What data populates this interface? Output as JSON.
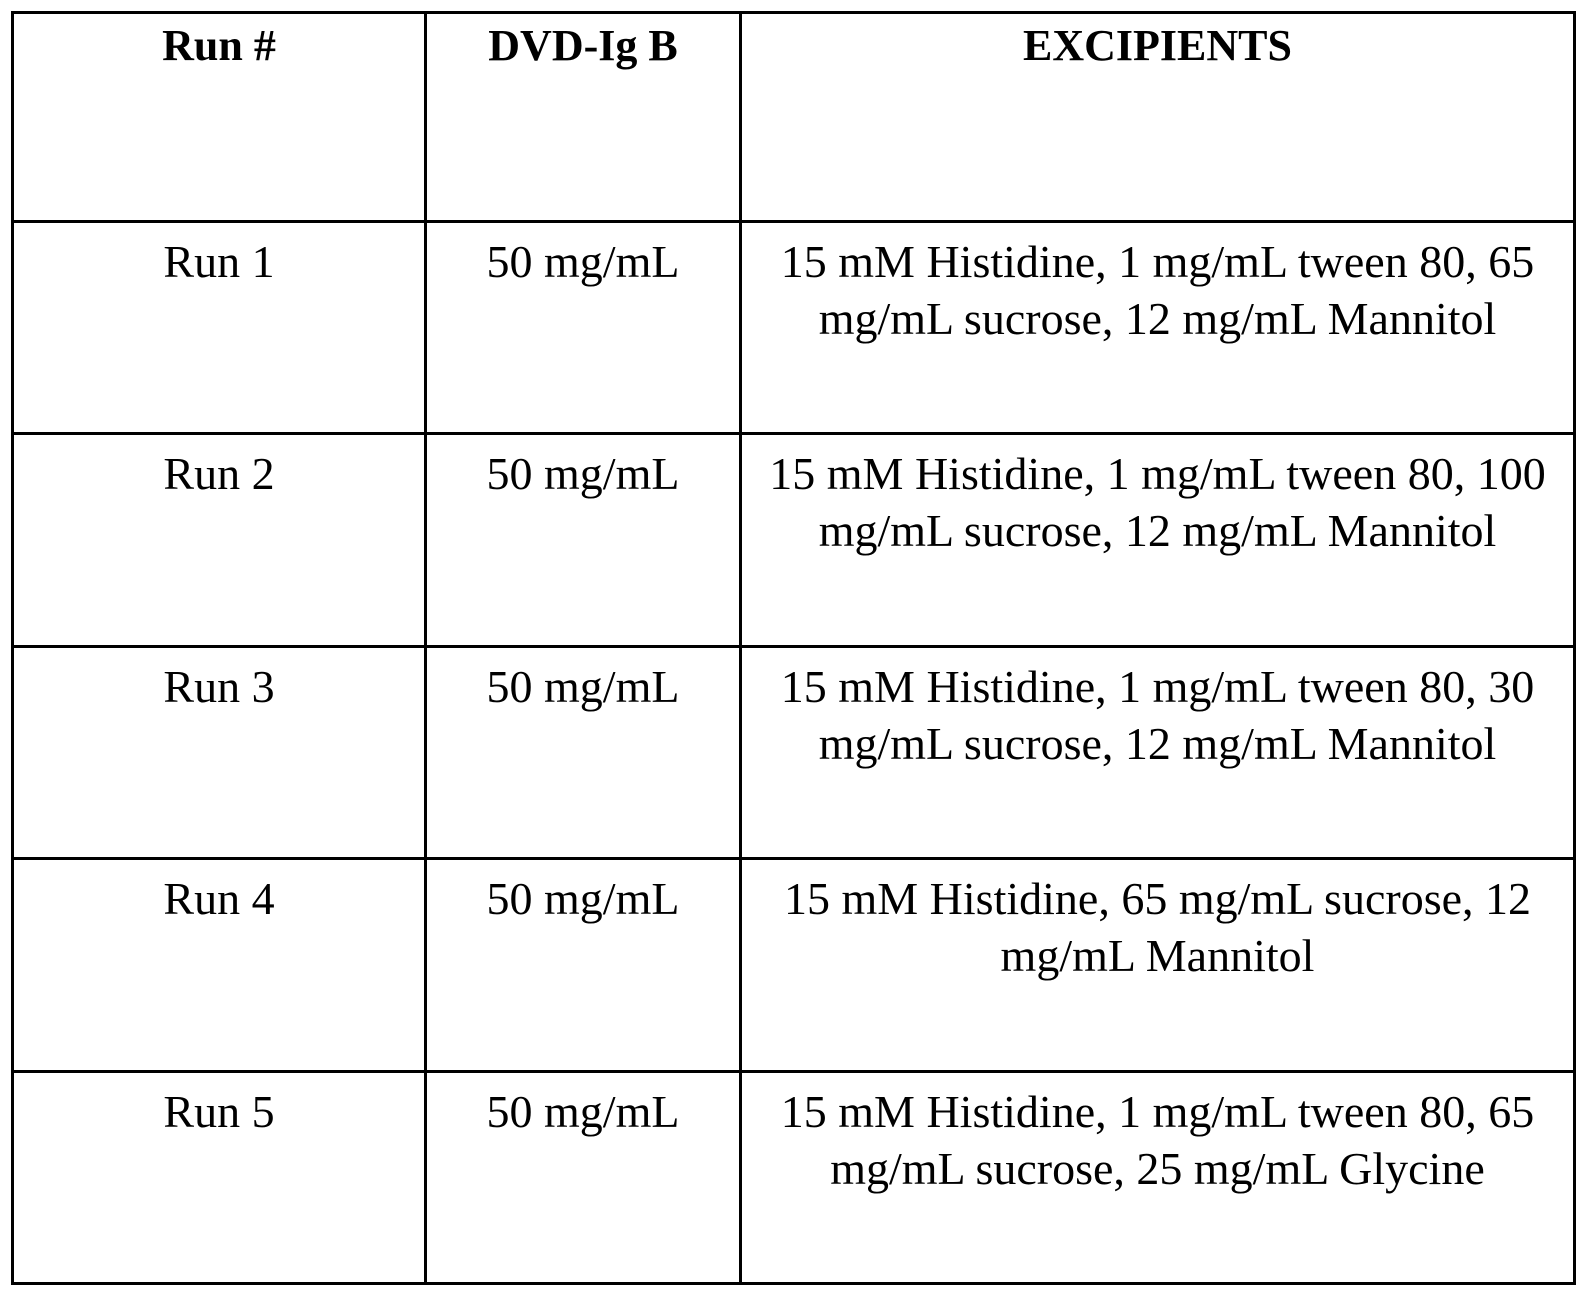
{
  "table": {
    "headers": {
      "run": "Run #",
      "dvd": "DVD-Ig B",
      "excipients": "EXCIPIENTS"
    },
    "rows": [
      {
        "run": "Run 1",
        "dvd": "50 mg/mL",
        "excipients": "15 mM Histidine, 1 mg/mL tween 80, 65 mg/mL sucrose, 12 mg/mL Mannitol"
      },
      {
        "run": "Run 2",
        "dvd": "50 mg/mL",
        "excipients": "15 mM Histidine, 1 mg/mL tween 80, 100 mg/mL sucrose, 12 mg/mL Mannitol"
      },
      {
        "run": "Run 3",
        "dvd": "50 mg/mL",
        "excipients": "15 mM Histidine, 1 mg/mL tween 80, 30 mg/mL sucrose, 12 mg/mL Mannitol"
      },
      {
        "run": "Run 4",
        "dvd": "50 mg/mL",
        "excipients": "15 mM Histidine, 65 mg/mL sucrose, 12 mg/mL Mannitol"
      },
      {
        "run": "Run 5",
        "dvd": "50 mg/mL",
        "excipients": "15 mM Histidine, 1 mg/mL tween 80, 65 mg/mL sucrose, 25 mg/mL Glycine"
      }
    ]
  }
}
